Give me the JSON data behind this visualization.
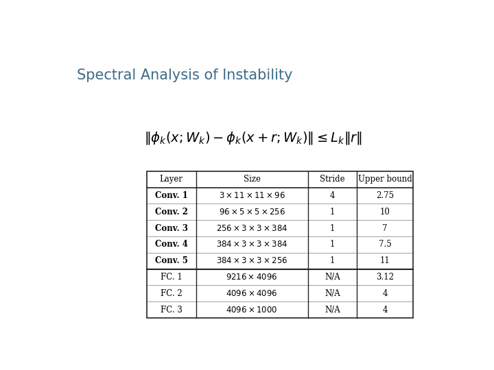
{
  "title": "Spectral Analysis of Instability",
  "title_color": "#3d6b8a",
  "formula": "$\\|\\phi_k(x;W_k) - \\phi_k(x+r;W_k)\\| \\leq L_k\\|r\\|$",
  "col_headers": [
    "Layer",
    "Size",
    "Stride",
    "Upper bound"
  ],
  "rows": [
    [
      "Conv. 1",
      "$3 \\times 11 \\times 11 \\times 96$",
      "4",
      "2.75"
    ],
    [
      "Conv. 2",
      "$96 \\times 5 \\times 5 \\times 256$",
      "1",
      "10"
    ],
    [
      "Conv. 3",
      "$256 \\times 3 \\times 3 \\times 384$",
      "1",
      "7"
    ],
    [
      "Conv. 4",
      "$384 \\times 3 \\times 3 \\times 384$",
      "1",
      "7.5"
    ],
    [
      "Conv. 5",
      "$384 \\times 3 \\times 3 \\times 256$",
      "1",
      "11"
    ],
    [
      "FC. 1",
      "$9216 \\times 4096$",
      "N/A",
      "3.12"
    ],
    [
      "FC. 2",
      "$4096 \\times 4096$",
      "N/A",
      "4"
    ],
    [
      "FC. 3",
      "$4096 \\times 1000$",
      "N/A",
      "4"
    ]
  ],
  "bold_rows": [
    0,
    1,
    2,
    3,
    4
  ],
  "fc_separator_after": 4,
  "background": "#ffffff",
  "table_border_color": "#222222",
  "font_size_title": 15,
  "font_size_formula": 14,
  "font_size_table": 8.5
}
